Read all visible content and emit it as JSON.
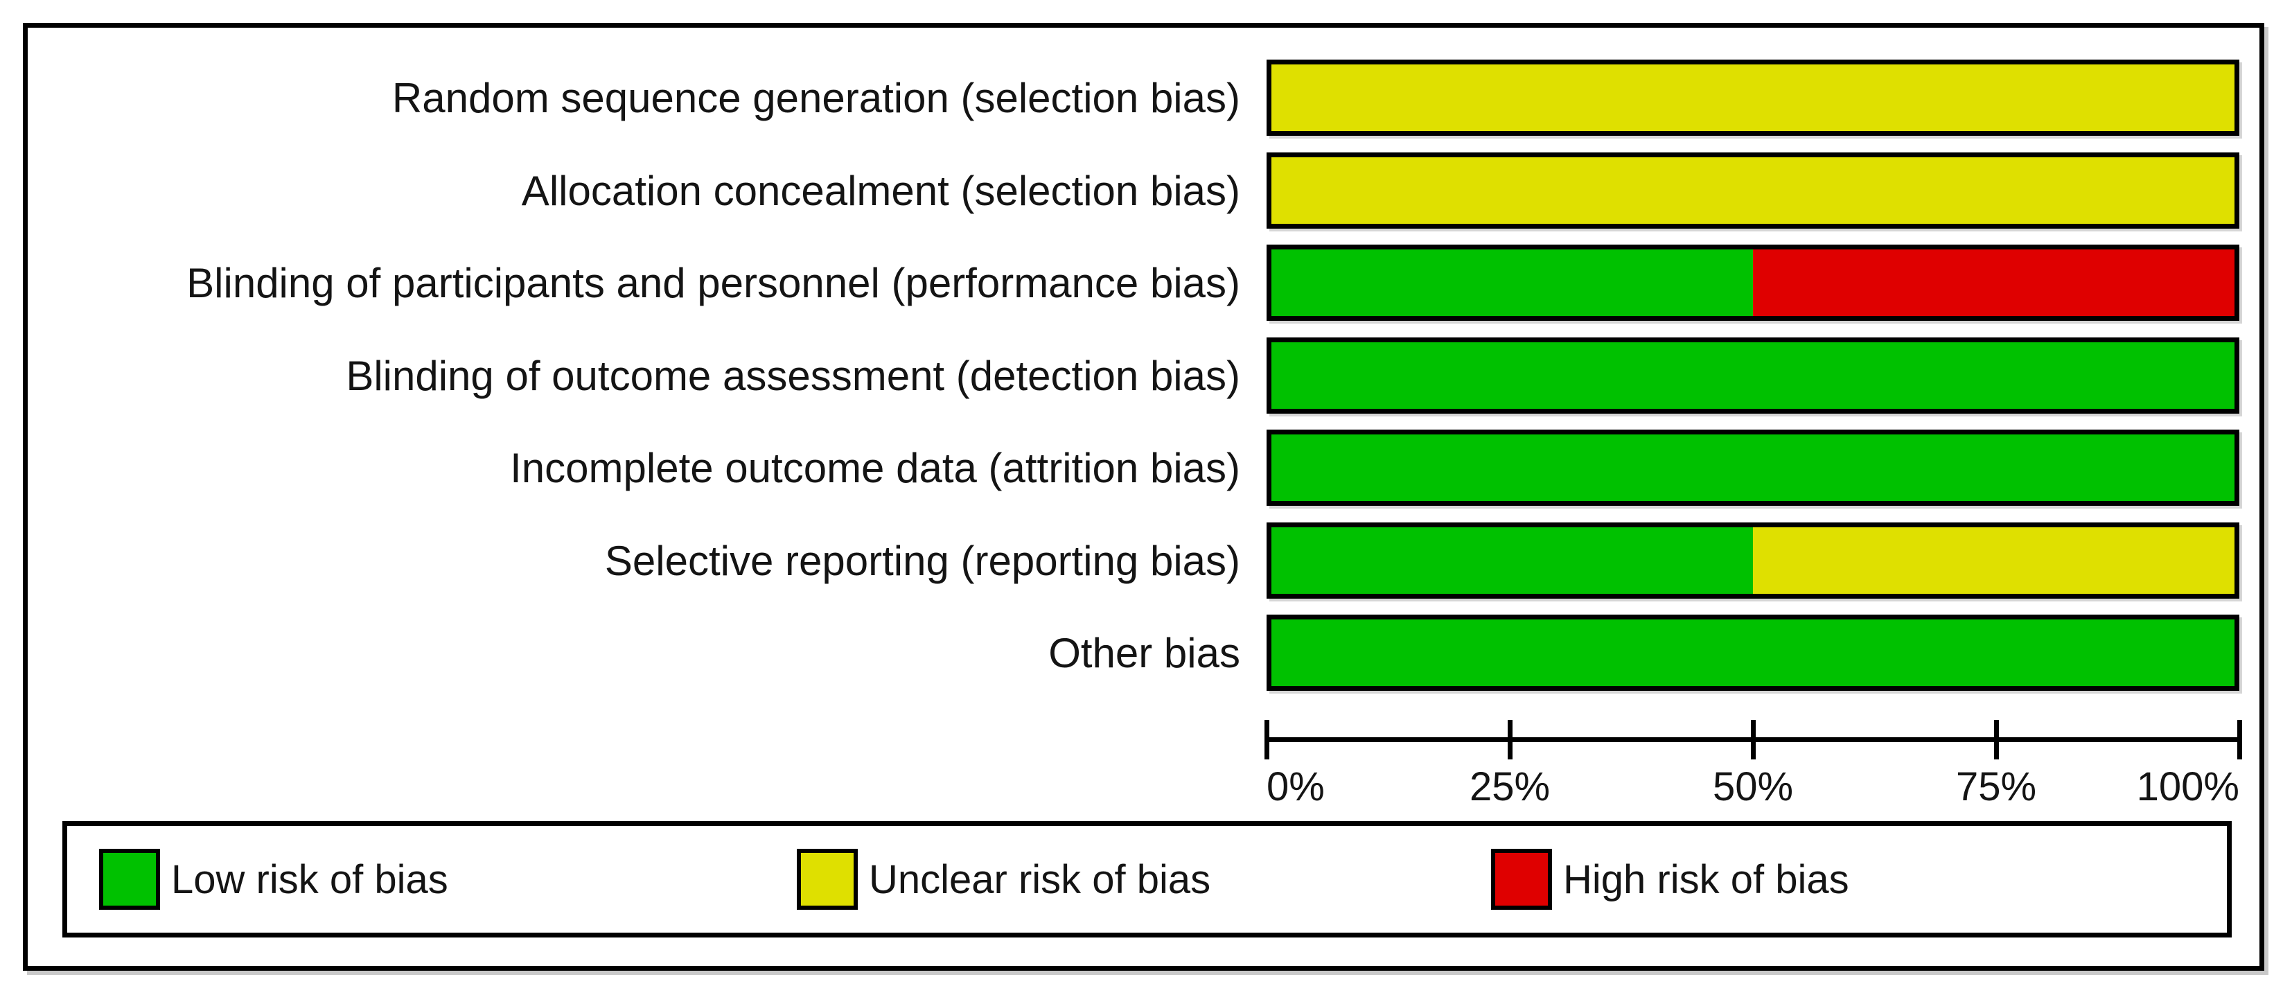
{
  "chart_data": {
    "type": "bar",
    "orientation": "horizontal-stacked",
    "title": "",
    "xlabel": "",
    "ylabel": "",
    "xlim": [
      0,
      100
    ],
    "grid": false,
    "legend_position": "bottom",
    "categories": [
      "Random sequence generation (selection bias)",
      "Allocation concealment (selection bias)",
      "Blinding of participants and personnel (performance bias)",
      "Blinding of outcome assessment (detection bias)",
      "Incomplete outcome data (attrition bias)",
      "Selective reporting (reporting bias)",
      "Other bias"
    ],
    "series": [
      {
        "name": "Low risk of bias",
        "color": "#00c100",
        "values": [
          0,
          0,
          50,
          100,
          100,
          50,
          100
        ]
      },
      {
        "name": "Unclear risk of bias",
        "color": "#dfe000",
        "values": [
          100,
          100,
          0,
          0,
          0,
          50,
          0
        ]
      },
      {
        "name": "High risk of bias",
        "color": "#df0000",
        "values": [
          0,
          0,
          50,
          0,
          0,
          0,
          0
        ]
      }
    ],
    "x_tick_labels": [
      "0%",
      "25%",
      "50%",
      "75%",
      "100%"
    ],
    "x_tick_values": [
      0,
      25,
      50,
      75,
      100
    ]
  },
  "legend": {
    "items": [
      {
        "label": "Low risk of bias",
        "color": "#00c100"
      },
      {
        "label": "Unclear risk of bias",
        "color": "#dfe000"
      },
      {
        "label": "High risk of bias",
        "color": "#df0000"
      }
    ]
  },
  "colors": {
    "low": "#00c100",
    "unclear": "#dfe000",
    "high": "#df0000",
    "border": "#000000",
    "text": "#141414",
    "background": "#ffffff"
  }
}
